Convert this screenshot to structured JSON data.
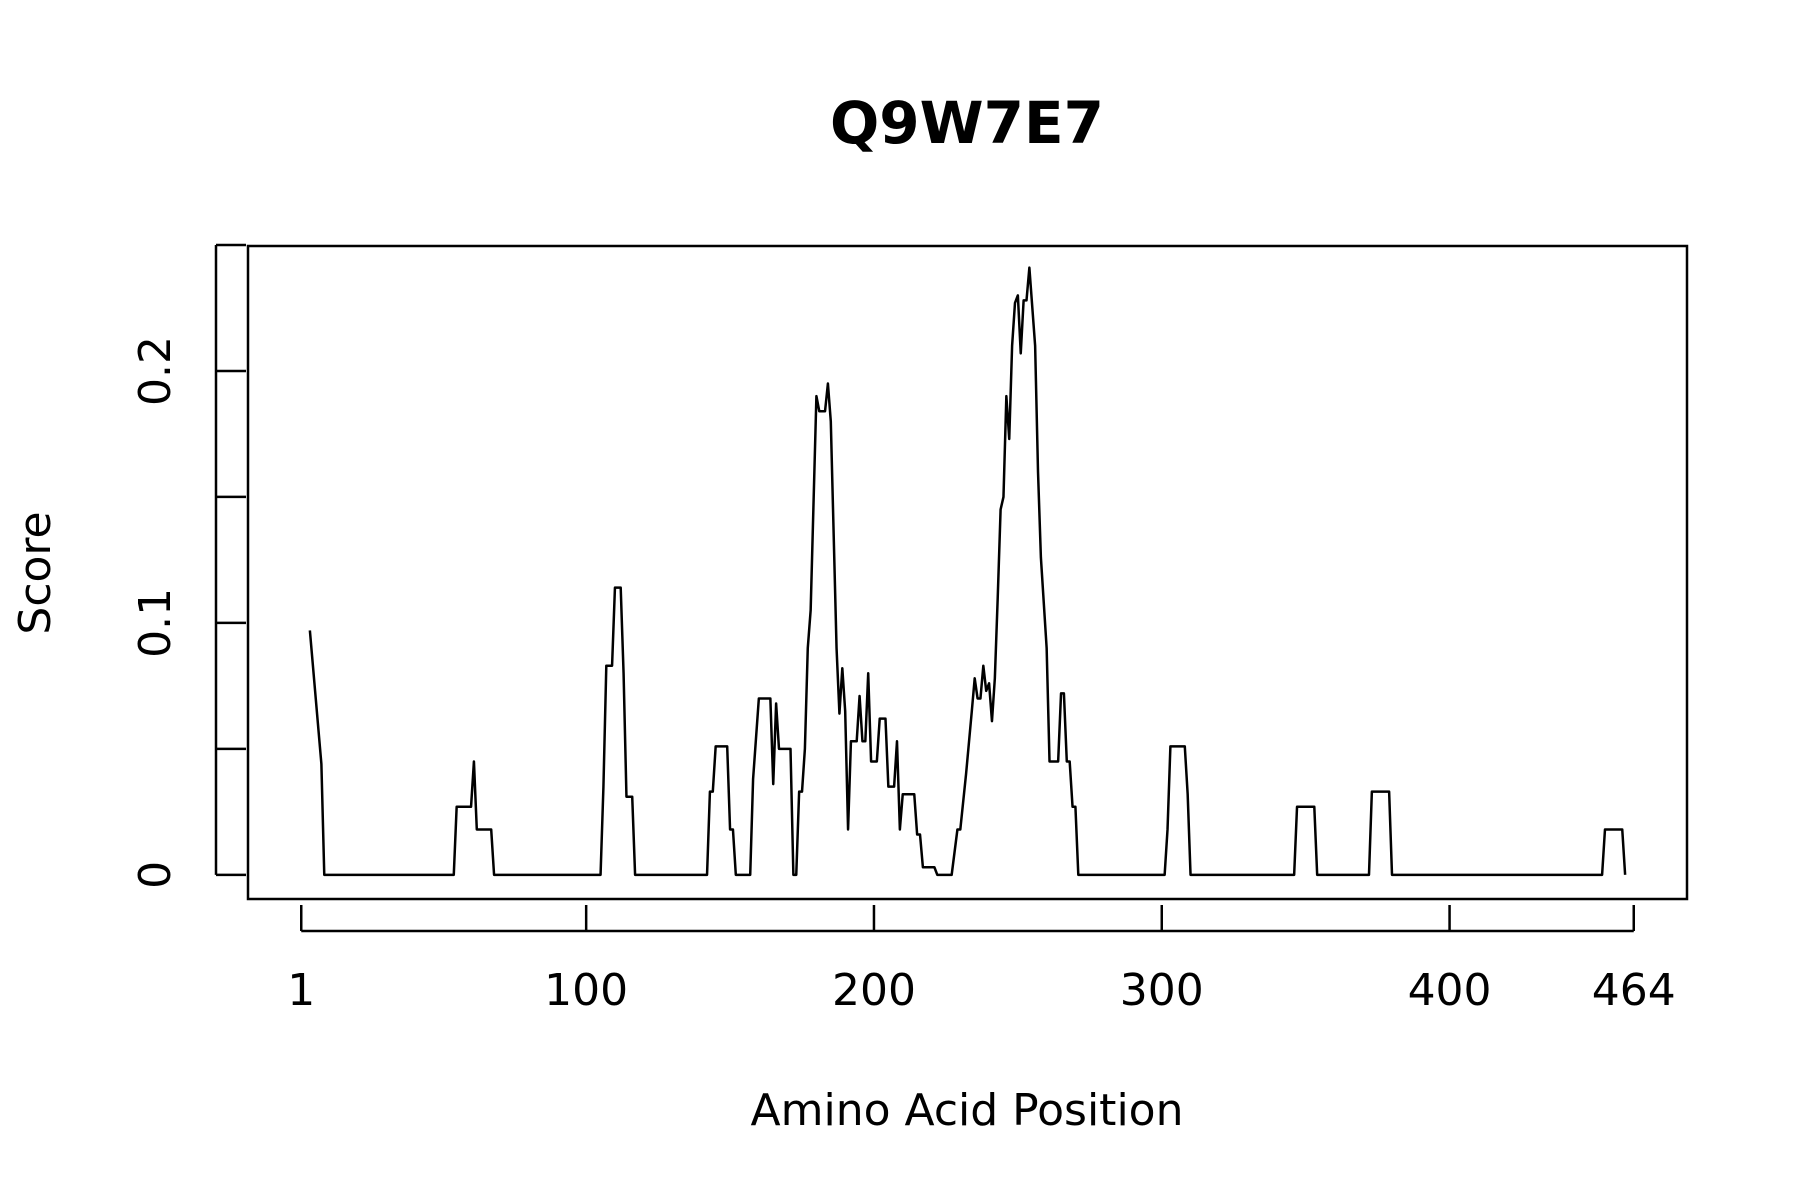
{
  "chart_data": {
    "type": "line",
    "title": "Q9W7E7",
    "x_label": "Amino Acid Position",
    "y_label": "Score",
    "series": [
      {
        "color": "#000000",
        "x": [
          4,
          8,
          9,
          54,
          55,
          60,
          61,
          62,
          67,
          68,
          105,
          106,
          107,
          109,
          110,
          112,
          113,
          114,
          116,
          117,
          142,
          143,
          144,
          145,
          149,
          150,
          151,
          152,
          157,
          158,
          160,
          164,
          165,
          166,
          167,
          171,
          172,
          173,
          174,
          175,
          176,
          177,
          178,
          180,
          181,
          183,
          184,
          185,
          187,
          188,
          189,
          190,
          191,
          192,
          194,
          195,
          196,
          197,
          198,
          199,
          201,
          202,
          204,
          205,
          207,
          208,
          209,
          210,
          214,
          215,
          216,
          217,
          221,
          222,
          227,
          229,
          230,
          232,
          234,
          235,
          236,
          237,
          238,
          239,
          240,
          241,
          242,
          243,
          244,
          245,
          246,
          247,
          248,
          249,
          250,
          251,
          252,
          253,
          254,
          256,
          257,
          258,
          260,
          261,
          264,
          265,
          266,
          267,
          268,
          269,
          270,
          271,
          301,
          302,
          303,
          308,
          309,
          310,
          346,
          347,
          353,
          354,
          372,
          373,
          379,
          380,
          453,
          454,
          460,
          461
        ],
        "values": [
          0.097,
          0.044,
          0,
          0,
          0.027,
          0.027,
          0.045,
          0.018,
          0.018,
          0,
          0,
          0.035,
          0.083,
          0.083,
          0.114,
          0.114,
          0.08,
          0.031,
          0.031,
          0,
          0,
          0.033,
          0.033,
          0.051,
          0.051,
          0.018,
          0.018,
          0,
          0,
          0.038,
          0.07,
          0.07,
          0.036,
          0.068,
          0.05,
          0.05,
          0,
          0,
          0.033,
          0.033,
          0.05,
          0.09,
          0.105,
          0.19,
          0.184,
          0.184,
          0.195,
          0.18,
          0.09,
          0.064,
          0.082,
          0.065,
          0.018,
          0.053,
          0.053,
          0.071,
          0.053,
          0.053,
          0.08,
          0.045,
          0.045,
          0.062,
          0.062,
          0.035,
          0.035,
          0.053,
          0.018,
          0.032,
          0.032,
          0.016,
          0.016,
          0.003,
          0.003,
          0,
          0,
          0.018,
          0.018,
          0.04,
          0.065,
          0.078,
          0.07,
          0.07,
          0.083,
          0.073,
          0.076,
          0.061,
          0.078,
          0.11,
          0.145,
          0.15,
          0.19,
          0.173,
          0.21,
          0.227,
          0.23,
          0.207,
          0.228,
          0.228,
          0.241,
          0.21,
          0.16,
          0.126,
          0.09,
          0.045,
          0.045,
          0.072,
          0.072,
          0.045,
          0.045,
          0.027,
          0.027,
          0,
          0,
          0.018,
          0.051,
          0.051,
          0.032,
          0,
          0,
          0.027,
          0.027,
          0,
          0,
          0.033,
          0.033,
          0,
          0,
          0.018,
          0.018,
          0
        ]
      }
    ],
    "xlim": [
      -17.5,
      482.5
    ],
    "xticks": [
      1,
      100,
      200,
      300,
      400,
      464
    ],
    "ylim": [
      -0.0096,
      0.2496
    ],
    "yticks": [
      0,
      0.1,
      0.2
    ],
    "yticks_minor": [
      0.05,
      0.15,
      0.25
    ]
  }
}
